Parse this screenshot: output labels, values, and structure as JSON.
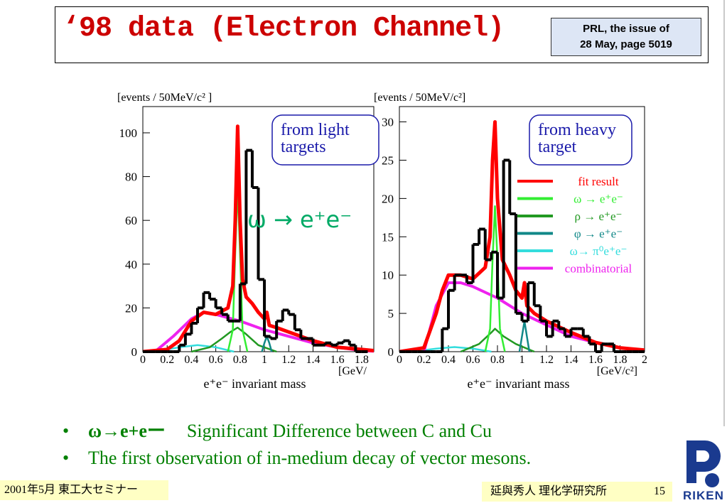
{
  "slide": {
    "title": "‘98 data (Electron Channel)",
    "ref_line1": "PRL, the issue of",
    "ref_line2": "28 May, page 5019"
  },
  "chart_data": [
    {
      "type": "histogram",
      "ylabel": "[events / 50MeV/c² ]",
      "xlabel": "e⁺e⁻ invariant mass",
      "xunit": "[GeV/",
      "label": "from light targets",
      "label_line1": "from light",
      "label_line2": "targets",
      "annotation": "ω → e⁺e⁻",
      "xlim": [
        0,
        1.9
      ],
      "ylim": [
        0,
        112
      ],
      "xticks": [
        "0",
        "0.2",
        "0.4",
        "0.6",
        "0.8",
        "1",
        "1.2",
        "1.4",
        "1.6",
        "1.8"
      ],
      "yticks": [
        "0",
        "20",
        "40",
        "60",
        "80",
        "100"
      ],
      "ytick_values": [
        0,
        20,
        40,
        60,
        80,
        100
      ],
      "bin_width": 0.05,
      "bins_start": 0,
      "counts": [
        0,
        0,
        0,
        0,
        0,
        0,
        3,
        8,
        13,
        20,
        27,
        24,
        20,
        17,
        14,
        14,
        31,
        92,
        75,
        33,
        7,
        6,
        14,
        19,
        17,
        10,
        6,
        6,
        3,
        3,
        4,
        3,
        4,
        5,
        3,
        0,
        0
      ],
      "curves": {
        "fit": [
          [
            0,
            0
          ],
          [
            0.2,
            1
          ],
          [
            0.3,
            5
          ],
          [
            0.4,
            14
          ],
          [
            0.5,
            18
          ],
          [
            0.6,
            17
          ],
          [
            0.7,
            20
          ],
          [
            0.74,
            30
          ],
          [
            0.76,
            60
          ],
          [
            0.78,
            103
          ],
          [
            0.8,
            60
          ],
          [
            0.82,
            33
          ],
          [
            0.85,
            25
          ],
          [
            0.9,
            22
          ],
          [
            0.95,
            18
          ],
          [
            1.0,
            15
          ],
          [
            1.02,
            18
          ],
          [
            1.04,
            12
          ],
          [
            1.1,
            11
          ],
          [
            1.2,
            9
          ],
          [
            1.4,
            5
          ],
          [
            1.6,
            2
          ],
          [
            1.8,
            1
          ],
          [
            1.9,
            0.5
          ]
        ],
        "omega": [
          [
            0.7,
            0
          ],
          [
            0.74,
            10
          ],
          [
            0.76,
            45
          ],
          [
            0.78,
            75
          ],
          [
            0.8,
            45
          ],
          [
            0.82,
            10
          ],
          [
            0.86,
            0
          ]
        ],
        "rho": [
          [
            0.4,
            0
          ],
          [
            0.55,
            2
          ],
          [
            0.65,
            6
          ],
          [
            0.72,
            9
          ],
          [
            0.78,
            11
          ],
          [
            0.85,
            8
          ],
          [
            0.95,
            3
          ],
          [
            1.1,
            0
          ]
        ],
        "phi": [
          [
            0.98,
            0
          ],
          [
            1.0,
            4
          ],
          [
            1.02,
            7
          ],
          [
            1.04,
            4
          ],
          [
            1.06,
            0
          ]
        ],
        "dalitz": [
          [
            0.1,
            0
          ],
          [
            0.3,
            2
          ],
          [
            0.45,
            3
          ],
          [
            0.6,
            2
          ],
          [
            0.75,
            0
          ]
        ],
        "combinatorial": [
          [
            0.1,
            0
          ],
          [
            0.25,
            7
          ],
          [
            0.4,
            15
          ],
          [
            0.5,
            18
          ],
          [
            0.6,
            17
          ],
          [
            0.8,
            14
          ],
          [
            1.0,
            10
          ],
          [
            1.2,
            7
          ],
          [
            1.4,
            4
          ],
          [
            1.6,
            2
          ],
          [
            1.8,
            0.5
          ],
          [
            1.9,
            0.2
          ]
        ]
      }
    },
    {
      "type": "histogram",
      "ylabel": "[events / 50MeV/c²]",
      "xlabel": "e⁺e⁻ invariant mass",
      "xunit": "[GeV/c²]",
      "label": "from heavy target",
      "label_line1": "from heavy",
      "label_line2": "target",
      "xlim": [
        0,
        2
      ],
      "ylim": [
        0,
        32
      ],
      "xticks": [
        "0",
        "0.2",
        "0.4",
        "0.6",
        "0.8",
        "1",
        "1.2",
        "1.4",
        "1.6",
        "1.8",
        "2"
      ],
      "yticks": [
        "0",
        "5",
        "10",
        "15",
        "20",
        "25",
        "30"
      ],
      "ytick_values": [
        0,
        5,
        10,
        15,
        20,
        25,
        30
      ],
      "bin_width": 0.05,
      "bins_start": 0,
      "counts": [
        0,
        0,
        0,
        0,
        0,
        0,
        0,
        3,
        8,
        10,
        10,
        9,
        14,
        16,
        12,
        13,
        7,
        25,
        18,
        5,
        4,
        9,
        6,
        4,
        2,
        4,
        3,
        2,
        3,
        3,
        2,
        1,
        0,
        1,
        1,
        0,
        0,
        0,
        0,
        0
      ],
      "curves": {
        "fit": [
          [
            0,
            0
          ],
          [
            0.2,
            0.5
          ],
          [
            0.3,
            5
          ],
          [
            0.35,
            8
          ],
          [
            0.4,
            10
          ],
          [
            0.5,
            10
          ],
          [
            0.6,
            9.5
          ],
          [
            0.7,
            11
          ],
          [
            0.74,
            15
          ],
          [
            0.76,
            25
          ],
          [
            0.78,
            30
          ],
          [
            0.8,
            20
          ],
          [
            0.84,
            12
          ],
          [
            0.9,
            10
          ],
          [
            0.95,
            8
          ],
          [
            1.0,
            7
          ],
          [
            1.02,
            9
          ],
          [
            1.04,
            6
          ],
          [
            1.1,
            5
          ],
          [
            1.2,
            4
          ],
          [
            1.4,
            2.5
          ],
          [
            1.6,
            1.2
          ],
          [
            1.8,
            0.5
          ],
          [
            2.0,
            0.2
          ]
        ],
        "omega": [
          [
            0.7,
            0
          ],
          [
            0.74,
            3
          ],
          [
            0.76,
            12
          ],
          [
            0.78,
            19
          ],
          [
            0.8,
            12
          ],
          [
            0.82,
            3
          ],
          [
            0.86,
            0
          ]
        ],
        "rho": [
          [
            0.5,
            0
          ],
          [
            0.65,
            1
          ],
          [
            0.75,
            2.5
          ],
          [
            0.78,
            3
          ],
          [
            0.85,
            2
          ],
          [
            0.95,
            1
          ],
          [
            1.1,
            0
          ]
        ],
        "phi": [
          [
            0.98,
            0
          ],
          [
            1.0,
            2
          ],
          [
            1.02,
            4
          ],
          [
            1.04,
            2
          ],
          [
            1.06,
            0
          ]
        ],
        "dalitz": [
          [
            0.1,
            0
          ],
          [
            0.3,
            0.4
          ],
          [
            0.45,
            0.6
          ],
          [
            0.6,
            0.4
          ],
          [
            0.75,
            0
          ]
        ],
        "combinatorial": [
          [
            0.2,
            0
          ],
          [
            0.3,
            6
          ],
          [
            0.4,
            9
          ],
          [
            0.5,
            9
          ],
          [
            0.6,
            8.5
          ],
          [
            0.8,
            7
          ],
          [
            1.0,
            5
          ],
          [
            1.2,
            3.5
          ],
          [
            1.4,
            2
          ],
          [
            1.6,
            1.2
          ],
          [
            1.8,
            0.5
          ],
          [
            2.0,
            0.2
          ]
        ]
      },
      "legend": {
        "position": "right",
        "entries": [
          {
            "label": "fit result",
            "color": "#ff0000"
          },
          {
            "label": "ω → e⁺e⁻",
            "color": "#33ee33"
          },
          {
            "label": "ρ → e⁺e⁻",
            "color": "#229922"
          },
          {
            "label": "φ → e⁺e⁻",
            "color": "#118888"
          },
          {
            "label": "ω→ π⁰e⁺e⁻",
            "color": "#33dddd"
          },
          {
            "label": "combinatorial",
            "color": "#ee22ee"
          }
        ]
      }
    }
  ],
  "colors": {
    "histogram": "#000000",
    "fit": "#ff0000",
    "omega": "#33ee33",
    "rho": "#229922",
    "phi": "#118888",
    "dalitz": "#33dddd",
    "combinatorial": "#ee22ee",
    "label_box": "#1a1aaa",
    "annotation": "#00aa66",
    "bullet_text": "#008000",
    "footer_bg": "#ffffc4",
    "title": "#cc0000"
  },
  "bullets": {
    "item1_sym": "ω→e+eー",
    "item1_text": "Significant Difference between C and Cu",
    "item2_text": "The first observation of in-medium decay of vector mesons."
  },
  "footer": {
    "left": "2001年5月 東工大セミナー",
    "author": "延與秀人 理化学研究所",
    "page": "15",
    "logo_text": "RIKEN"
  }
}
